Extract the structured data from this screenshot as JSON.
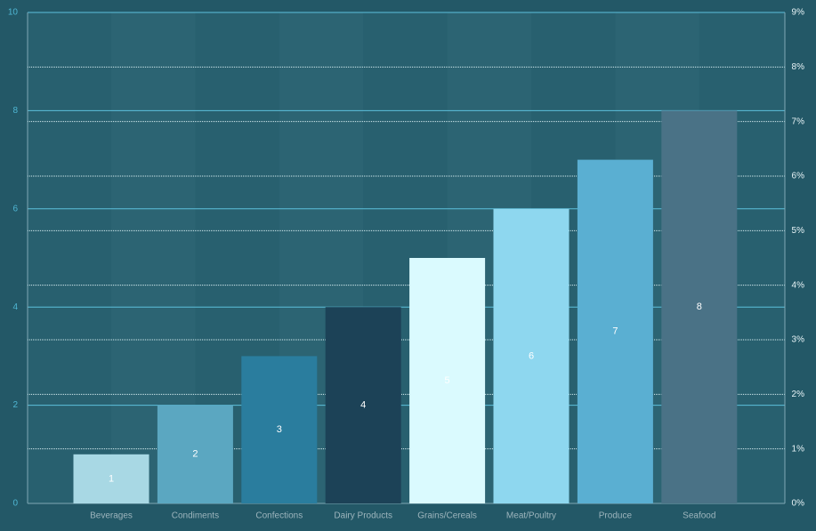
{
  "chart_data": {
    "type": "bar",
    "categories": [
      "Beverages",
      "Condiments",
      "Confections",
      "Dairy Products",
      "Grains/Cereals",
      "Meat/Poultry",
      "Produce",
      "Seafood"
    ],
    "values": [
      1,
      2,
      3,
      4,
      5,
      6,
      7,
      8
    ],
    "colors": [
      "#a8d8e4",
      "#5ba7c1",
      "#2a7d9e",
      "#1c4257",
      "#dafafe",
      "#8ed7ef",
      "#5aafd2",
      "#4a7286"
    ],
    "ylim": [
      0,
      10
    ],
    "yticks": [
      0,
      2,
      4,
      6,
      8,
      10
    ],
    "y2lim": [
      0,
      9
    ],
    "y2ticks": [
      {
        "value": 0,
        "label": "0%"
      },
      {
        "value": 1,
        "label": "1%"
      },
      {
        "value": 2,
        "label": "2%"
      },
      {
        "value": 3,
        "label": "3%"
      },
      {
        "value": 4,
        "label": "4%"
      },
      {
        "value": 5,
        "label": "5%"
      },
      {
        "value": 6,
        "label": "6%"
      },
      {
        "value": 7,
        "label": "7%"
      },
      {
        "value": 8,
        "label": "8%"
      },
      {
        "value": 9,
        "label": "9%"
      }
    ],
    "grid": true
  }
}
